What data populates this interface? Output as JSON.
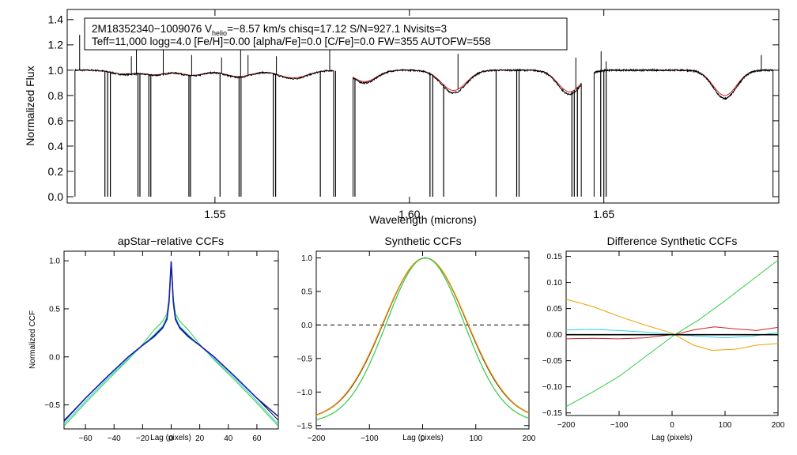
{
  "figure": {
    "header_line1": {
      "star_id": "2M18352340−1009076",
      "v_symbol": "V",
      "v_subscript": "helio",
      "v_value": "=−8.57 km/s",
      "chisq": "chisq=17.12",
      "snr": "S/N=927.1",
      "nvisits": "Nvisits=3"
    },
    "header_line2": "Teff=11,000 logg=4.0 [Fe/H]=0.00 [alpha/Fe]=0.0 [C/Fe]=0.0 FW=355 AUTOFW=558"
  },
  "colors": {
    "observed": "#000000",
    "model": "#dd2222",
    "ccf_black": "#000000",
    "ccf_blue": "#1a1aa6",
    "ccf_cyan": "#2fd4e6",
    "ccf_green": "#2ecc40",
    "ccf_red": "#cc2020",
    "ccf_orange": "#f0a000"
  },
  "chart_data": [
    {
      "type": "line",
      "id": "spectrum",
      "title": "",
      "xlabel": "Wavelength (microns)",
      "ylabel": "Normalized Flux",
      "xlim": [
        1.512,
        1.695
      ],
      "ylim": [
        -0.05,
        1.48
      ],
      "xticks": [
        1.55,
        1.6,
        1.65
      ],
      "xtick_labels": [
        "1.55",
        "1.60",
        "1.65"
      ],
      "yticks": [
        0.0,
        0.2,
        0.4,
        0.6,
        0.8,
        1.0,
        1.2,
        1.4
      ],
      "ytick_labels": [
        "0.0",
        "0.2",
        "0.4",
        "0.6",
        "0.8",
        "1.0",
        "1.2",
        "1.4"
      ],
      "chips": [
        [
          1.514,
          1.5805
        ],
        [
          1.5855,
          1.6442
        ],
        [
          1.6475,
          1.6935
        ]
      ],
      "continuum": 1.0,
      "hydrogen_lines": [
        {
          "center": 1.5265,
          "depth": 0.03,
          "width": 0.003
        },
        {
          "center": 1.5346,
          "depth": 0.035,
          "width": 0.003
        },
        {
          "center": 1.5443,
          "depth": 0.04,
          "width": 0.003
        },
        {
          "center": 1.556,
          "depth": 0.05,
          "width": 0.0035
        },
        {
          "center": 1.5701,
          "depth": 0.06,
          "width": 0.0038
        },
        {
          "center": 1.5885,
          "depth": 0.09,
          "width": 0.003
        },
        {
          "center": 1.6114,
          "depth": 0.16,
          "width": 0.0032
        },
        {
          "center": 1.6412,
          "depth": 0.17,
          "width": 0.003
        },
        {
          "center": 1.6811,
          "depth": 0.2,
          "width": 0.003
        }
      ],
      "bad_pixel_spikes": [
        {
          "wl": 1.5217,
          "low": 0.0
        },
        {
          "wl": 1.5224,
          "low": 0.0
        },
        {
          "wl": 1.5231,
          "low": 0.0
        },
        {
          "wl": 1.5302,
          "low": 0.0
        },
        {
          "wl": 1.5307,
          "low": 0.0
        },
        {
          "wl": 1.533,
          "low": 0.0
        },
        {
          "wl": 1.5335,
          "low": 0.0
        },
        {
          "wl": 1.5433,
          "low": 0.0
        },
        {
          "wl": 1.5437,
          "low": 0.0
        },
        {
          "wl": 1.5513,
          "low": 0.0
        },
        {
          "wl": 1.5562,
          "low": 0.0
        },
        {
          "wl": 1.5567,
          "low": 0.0
        },
        {
          "wl": 1.565,
          "low": 0.0
        },
        {
          "wl": 1.5656,
          "low": 0.0
        },
        {
          "wl": 1.5771,
          "low": 0.0
        },
        {
          "wl": 1.6053,
          "low": 0.0
        },
        {
          "wl": 1.606,
          "low": 0.0
        },
        {
          "wl": 1.6088,
          "low": 0.0
        },
        {
          "wl": 1.6223,
          "low": 0.0
        },
        {
          "wl": 1.6276,
          "low": 0.0
        },
        {
          "wl": 1.6282,
          "low": 0.0
        },
        {
          "wl": 1.6418,
          "low": 0.0
        },
        {
          "wl": 1.6424,
          "low": 0.0
        },
        {
          "wl": 1.6432,
          "low": 0.0
        },
        {
          "wl": 1.6492,
          "low": 0.0
        },
        {
          "wl": 1.65,
          "low": 0.0
        },
        {
          "wl": 1.6506,
          "low": 0.0
        },
        {
          "wl": 1.581,
          "low": 0.0
        },
        {
          "wl": 1.586,
          "low": 0.0
        }
      ],
      "upward_spikes": [
        {
          "wl": 1.5152,
          "high": 1.28
        },
        {
          "wl": 1.5285,
          "high": 1.11
        },
        {
          "wl": 1.5298,
          "high": 1.21
        },
        {
          "wl": 1.5367,
          "high": 1.18
        },
        {
          "wl": 1.544,
          "high": 1.12
        },
        {
          "wl": 1.5517,
          "high": 1.1
        },
        {
          "wl": 1.5566,
          "high": 1.21
        },
        {
          "wl": 1.5585,
          "high": 1.12
        },
        {
          "wl": 1.5658,
          "high": 1.11
        },
        {
          "wl": 1.5795,
          "high": 1.3
        },
        {
          "wl": 1.6125,
          "high": 1.13
        },
        {
          "wl": 1.6428,
          "high": 1.1
        },
        {
          "wl": 1.6493,
          "high": 1.15
        },
        {
          "wl": 1.6506,
          "high": 1.07
        },
        {
          "wl": 1.6905,
          "high": 1.12
        }
      ]
    },
    {
      "type": "line",
      "id": "ccf_apstar",
      "title": "apStar−relative CCFs",
      "xlabel": "Lag (pixels)",
      "ylabel": "Normalized CCF",
      "xlim": [
        -75,
        75
      ],
      "ylim": [
        -0.75,
        1.1
      ],
      "xticks": [
        -60,
        -40,
        -20,
        0,
        20,
        40,
        60
      ],
      "xtick_labels": [
        "−60",
        "−40",
        "−20",
        "0",
        "20",
        "40",
        "60"
      ],
      "yticks": [
        -0.5,
        0.0,
        0.5,
        1.0
      ],
      "ytick_labels": [
        "−0.5",
        "0.0",
        "0.5",
        "1.0"
      ],
      "series": [
        {
          "name": "green",
          "x": [
            -75,
            -60,
            -45,
            -30,
            -20,
            -12,
            -6,
            -3,
            -1.5,
            0,
            1.5,
            3,
            6,
            12,
            20,
            30,
            45,
            60,
            75
          ],
          "y": [
            -0.72,
            -0.48,
            -0.25,
            -0.03,
            0.13,
            0.28,
            0.37,
            0.45,
            0.62,
            1.0,
            0.62,
            0.45,
            0.37,
            0.28,
            0.13,
            -0.03,
            -0.25,
            -0.48,
            -0.72
          ]
        },
        {
          "name": "black",
          "x": [
            -75,
            -60,
            -45,
            -30,
            -20,
            -12,
            -6,
            -3,
            -1.5,
            0,
            1.5,
            3,
            6,
            12,
            20,
            30,
            45,
            60,
            75
          ],
          "y": [
            -0.66,
            -0.43,
            -0.21,
            0.0,
            0.12,
            0.22,
            0.31,
            0.4,
            0.58,
            1.0,
            0.58,
            0.4,
            0.31,
            0.22,
            0.12,
            0.0,
            -0.21,
            -0.43,
            -0.66
          ]
        },
        {
          "name": "cyan",
          "x": [
            -75,
            -60,
            -45,
            -30,
            -20,
            -12,
            -6,
            -3,
            -1.5,
            0,
            1.5,
            3,
            6,
            12,
            20,
            30,
            45,
            60,
            75
          ],
          "y": [
            -0.7,
            -0.46,
            -0.23,
            -0.02,
            0.12,
            0.23,
            0.32,
            0.42,
            0.6,
            1.0,
            0.6,
            0.42,
            0.32,
            0.23,
            0.12,
            -0.02,
            -0.23,
            -0.46,
            -0.7
          ]
        },
        {
          "name": "blue",
          "x": [
            -75,
            -60,
            -45,
            -30,
            -20,
            -12,
            -6,
            -3,
            -1.5,
            0,
            1.5,
            3,
            6,
            12,
            20,
            30,
            45,
            60,
            75
          ],
          "y": [
            -0.67,
            -0.43,
            -0.21,
            0.0,
            0.12,
            0.21,
            0.3,
            0.39,
            0.57,
            0.99,
            0.57,
            0.39,
            0.3,
            0.21,
            0.12,
            0.0,
            -0.21,
            -0.43,
            -0.62
          ]
        }
      ]
    },
    {
      "type": "line",
      "id": "ccf_synthetic",
      "title": "Synthetic CCFs",
      "xlabel": "Lag (pixels)",
      "ylabel": "",
      "xlim": [
        -200,
        200
      ],
      "ylim": [
        -1.55,
        1.1
      ],
      "xticks": [
        -200,
        -100,
        0,
        100,
        200
      ],
      "xtick_labels": [
        "−200",
        "−100",
        "0",
        "100",
        "200"
      ],
      "yticks": [
        -1.5,
        -1.0,
        -0.5,
        0.0,
        0.5,
        1.0
      ],
      "ytick_labels": [
        "−1.5",
        "−1.0",
        "−0.5",
        "0.0",
        "0.5",
        "1.0"
      ],
      "zero_line": 0.0,
      "center": 5,
      "series": [
        {
          "name": "black",
          "sigma": 78,
          "offset": 1.42
        },
        {
          "name": "red",
          "sigma": 78.5,
          "offset": 1.42
        },
        {
          "name": "orange",
          "sigma": 79,
          "offset": 1.43
        },
        {
          "name": "green",
          "sigma": 73,
          "offset": 1.46
        }
      ]
    },
    {
      "type": "line",
      "id": "ccf_difference",
      "title": "Difference Synthetic CCFs",
      "xlabel": "Lag (pixels)",
      "ylabel": "",
      "xlim": [
        -200,
        200
      ],
      "ylim": [
        -0.155,
        0.16
      ],
      "xticks": [
        -200,
        -100,
        0,
        100,
        200
      ],
      "xtick_labels": [
        "−200",
        "−100",
        "0",
        "100",
        "200"
      ],
      "yticks": [
        -0.15,
        -0.1,
        -0.05,
        0.0,
        0.05,
        0.1,
        0.15
      ],
      "ytick_labels": [
        "−0.15",
        "−0.10",
        "−0.05",
        "0.00",
        "0.05",
        "0.10",
        "0.15"
      ],
      "zero_line": 0.0,
      "series": [
        {
          "name": "black",
          "x": [
            -200,
            200
          ],
          "y": [
            0.0,
            0.0
          ]
        },
        {
          "name": "green",
          "x": [
            -200,
            -150,
            -100,
            -50,
            0,
            5,
            50,
            100,
            150,
            200
          ],
          "y": [
            -0.138,
            -0.11,
            -0.08,
            -0.042,
            -0.004,
            0.0,
            0.028,
            0.065,
            0.104,
            0.143
          ]
        },
        {
          "name": "orange",
          "x": [
            -200,
            -150,
            -100,
            -50,
            0,
            5,
            40,
            75,
            120,
            160,
            200
          ],
          "y": [
            0.068,
            0.054,
            0.035,
            0.018,
            0.003,
            0.0,
            -0.02,
            -0.03,
            -0.028,
            -0.02,
            -0.017
          ]
        },
        {
          "name": "cyan",
          "x": [
            -200,
            -150,
            -100,
            -50,
            0,
            5,
            50,
            100,
            150,
            200
          ],
          "y": [
            0.009,
            0.01,
            0.008,
            0.005,
            0.001,
            0.0,
            -0.003,
            -0.006,
            -0.003,
            0.004
          ]
        },
        {
          "name": "red",
          "x": [
            -200,
            -150,
            -100,
            -50,
            0,
            5,
            40,
            80,
            120,
            160,
            200
          ],
          "y": [
            -0.008,
            -0.007,
            -0.008,
            -0.006,
            0.0,
            0.0,
            0.009,
            0.015,
            0.011,
            0.008,
            0.014
          ]
        }
      ]
    }
  ]
}
